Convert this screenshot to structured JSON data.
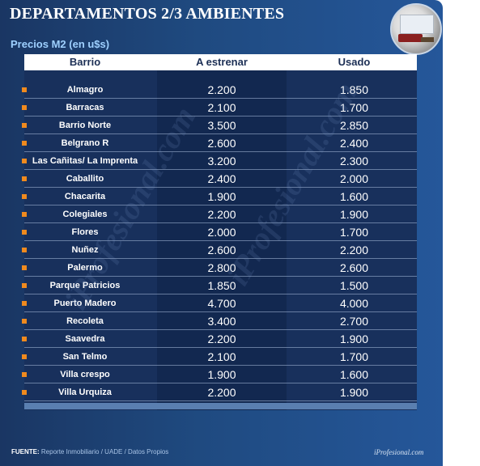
{
  "title": "DEPARTAMENTOS 2/3 AMBIENTES",
  "subtitle": "Precios M2 (en u$s)",
  "table": {
    "headers": [
      "Barrio",
      "A estrenar",
      "Usado"
    ],
    "rows": [
      [
        "Almagro",
        "2.200",
        "1.850"
      ],
      [
        "Barracas",
        "2.100",
        "1.700"
      ],
      [
        "Barrio Norte",
        "3.500",
        "2.850"
      ],
      [
        "Belgrano R",
        "2.600",
        "2.400"
      ],
      [
        "Las Cañitas/ La Imprenta",
        "3.200",
        "2.300"
      ],
      [
        "Caballito",
        "2.400",
        "2.000"
      ],
      [
        "Chacarita",
        "1.900",
        "1.600"
      ],
      [
        "Colegiales",
        "2.200",
        "1.900"
      ],
      [
        "Flores",
        "2.000",
        "1.700"
      ],
      [
        "Nuñez",
        "2.600",
        "2.200"
      ],
      [
        "Palermo",
        "2.800",
        "2.600"
      ],
      [
        "Parque Patricios",
        "1.850",
        "1.500"
      ],
      [
        "Puerto Madero",
        "4.700",
        "4.000"
      ],
      [
        "Recoleta",
        "3.400",
        "2.700"
      ],
      [
        "Saavedra",
        "2.200",
        "1.900"
      ],
      [
        "San Telmo",
        "2.100",
        "1.700"
      ],
      [
        "Villa crespo",
        "1.900",
        "1.600"
      ],
      [
        "Villa Urquiza",
        "2.200",
        "1.900"
      ]
    ]
  },
  "footer": {
    "source_label": "FUENTE:",
    "source_text": "Reporte Inmobiliario / UADE / Datos Propios",
    "brand": "iProfesional.com"
  },
  "watermark_text": "iProfesional.com",
  "colors": {
    "background": "#1f4a80",
    "bullet": "#f08a1e",
    "subtitle": "#9ed0ff"
  }
}
